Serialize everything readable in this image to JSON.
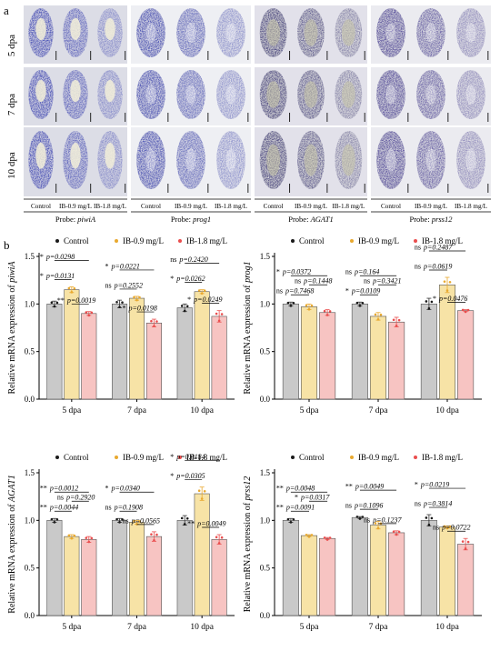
{
  "panel_a": {
    "label": "a",
    "row_labels": [
      "5 dpa",
      "7 dpa",
      "10 dpa"
    ],
    "groups": [
      {
        "probe_prefix": "Probe: ",
        "probe_name": "piwiA",
        "conditions": [
          "Control",
          "IB-0.9 mg/L",
          "IB-1.8 mg/L"
        ],
        "stain": "#3c47b4",
        "bg": "#dcdde6",
        "style": "piwi"
      },
      {
        "probe_prefix": "Probe: ",
        "probe_name": "prog1",
        "conditions": [
          "Control",
          "IB-0.9 mg/L",
          "IB-1.8 mg/L"
        ],
        "stain": "#3f49b0",
        "bg": "#eeeff3",
        "style": "prog"
      },
      {
        "probe_prefix": "Probe: ",
        "probe_name": "AGAT1",
        "conditions": [
          "Control",
          "IB-0.9 mg/L",
          "IB-1.8 mg/L"
        ],
        "stain": "#3c3778",
        "bg": "#e2e1ea",
        "style": "agat"
      },
      {
        "probe_prefix": "Probe: ",
        "probe_name": "prss12",
        "conditions": [
          "Control",
          "IB-0.9 mg/L",
          "IB-1.8 mg/L"
        ],
        "stain": "#4b3f96",
        "bg": "#ebebf0",
        "style": "prss"
      }
    ]
  },
  "panel_b_label": "b",
  "legend_labels": [
    "Control",
    "IB-0.9 mg/L",
    "IB-1.8 mg/L"
  ],
  "colors": {
    "control": "#c9c9c9",
    "ib09": "#f7e3a6",
    "ib18": "#f7c4c2",
    "dot_control": "#1a1a1a",
    "dot_ib09": "#e9a92f",
    "dot_ib18": "#ea4e4e"
  },
  "chart_data": [
    {
      "type": "bar",
      "gene": "piwiA",
      "ylabel_prefix": "Relative mRNA expression of ",
      "categories": [
        "5 dpa",
        "7 dpa",
        "10 dpa"
      ],
      "ylim": [
        0,
        1.5
      ],
      "yticks": [
        "0.0",
        "0.5",
        "1.0",
        "1.5"
      ],
      "series": [
        {
          "name": "Control",
          "values": [
            1.0,
            1.0,
            0.96
          ],
          "errors": [
            0.03,
            0.04,
            0.04
          ]
        },
        {
          "name": "IB-0.9 mg/L",
          "values": [
            1.15,
            1.06,
            1.13
          ],
          "errors": [
            0.03,
            0.02,
            0.02
          ]
        },
        {
          "name": "IB-1.8 mg/L",
          "values": [
            0.9,
            0.8,
            0.87
          ],
          "errors": [
            0.02,
            0.04,
            0.06
          ]
        }
      ],
      "annotations": [
        {
          "cat": 0,
          "from": 0,
          "to": 2,
          "stars": "*",
          "p": "p=0.0298"
        },
        {
          "cat": 0,
          "from": 1,
          "to": 2,
          "stars": "**",
          "p": "p=0.0019"
        },
        {
          "cat": 0,
          "from": 0,
          "to": 1,
          "stars": "*",
          "p": "p=0.0131"
        },
        {
          "cat": 1,
          "from": 0,
          "to": 2,
          "stars": "*",
          "p": "p=0.0221"
        },
        {
          "cat": 1,
          "from": 1,
          "to": 2,
          "stars": "*",
          "p": "p=0.0198"
        },
        {
          "cat": 1,
          "from": 0,
          "to": 1,
          "stars": "ns",
          "p": "p=0.2552"
        },
        {
          "cat": 2,
          "from": 0,
          "to": 2,
          "stars": "ns",
          "p": "p=0.2420"
        },
        {
          "cat": 2,
          "from": 1,
          "to": 2,
          "stars": "*",
          "p": "p=0.0249"
        },
        {
          "cat": 2,
          "from": 0,
          "to": 1,
          "stars": "*",
          "p": "p=0.0262"
        }
      ]
    },
    {
      "type": "bar",
      "gene": "prog1",
      "ylabel_prefix": "Relative mRNA expression of ",
      "categories": [
        "5 dpa",
        "7 dpa",
        "10 dpa"
      ],
      "ylim": [
        0,
        1.5
      ],
      "yticks": [
        "0.0",
        "0.5",
        "1.0",
        "1.5"
      ],
      "series": [
        {
          "name": "Control",
          "values": [
            1.0,
            1.0,
            1.0
          ],
          "errors": [
            0.02,
            0.02,
            0.06
          ]
        },
        {
          "name": "IB-0.9 mg/L",
          "values": [
            0.97,
            0.87,
            1.2
          ],
          "errors": [
            0.03,
            0.04,
            0.08
          ]
        },
        {
          "name": "IB-1.8 mg/L",
          "values": [
            0.91,
            0.81,
            0.93
          ],
          "errors": [
            0.03,
            0.05,
            0.01
          ]
        }
      ],
      "annotations": [
        {
          "cat": 0,
          "from": 0,
          "to": 2,
          "stars": "*",
          "p": "p=0.0372"
        },
        {
          "cat": 0,
          "from": 1,
          "to": 2,
          "stars": "ns",
          "p": "p=0.1448"
        },
        {
          "cat": 0,
          "from": 0,
          "to": 1,
          "stars": "ns",
          "p": "p=0.7468"
        },
        {
          "cat": 1,
          "from": 0,
          "to": 2,
          "stars": "ns",
          "p": "p=0.164"
        },
        {
          "cat": 1,
          "from": 0,
          "to": 1,
          "stars": "*",
          "p": "p=0.0109"
        },
        {
          "cat": 1,
          "from": 1,
          "to": 2,
          "stars": "ns",
          "p": "p=0.3421"
        },
        {
          "cat": 2,
          "from": 0,
          "to": 2,
          "stars": "ns",
          "p": "p=0.2487"
        },
        {
          "cat": 2,
          "from": 1,
          "to": 2,
          "stars": "*",
          "p": "p=0.0476"
        },
        {
          "cat": 2,
          "from": 0,
          "to": 1,
          "stars": "ns",
          "p": "p=0.0619"
        }
      ]
    },
    {
      "type": "bar",
      "gene": "AGAT1",
      "ylabel_prefix": "Relative mRNA expression of ",
      "categories": [
        "5 dpa",
        "7 dpa",
        "10 dpa"
      ],
      "ylim": [
        0,
        1.5
      ],
      "yticks": [
        "0.0",
        "0.5",
        "1.0",
        "1.5"
      ],
      "series": [
        {
          "name": "Control",
          "values": [
            1.0,
            1.0,
            1.0
          ],
          "errors": [
            0.02,
            0.02,
            0.05
          ]
        },
        {
          "name": "IB-0.9 mg/L",
          "values": [
            0.83,
            0.98,
            1.28
          ],
          "errors": [
            0.02,
            0.02,
            0.07
          ]
        },
        {
          "name": "IB-1.8 mg/L",
          "values": [
            0.8,
            0.83,
            0.8
          ],
          "errors": [
            0.03,
            0.05,
            0.05
          ]
        }
      ],
      "annotations": [
        {
          "cat": 0,
          "from": 0,
          "to": 2,
          "stars": "**",
          "p": "p=0.0012"
        },
        {
          "cat": 0,
          "from": 0,
          "to": 1,
          "stars": "**",
          "p": "p=0.0044"
        },
        {
          "cat": 0,
          "from": 1,
          "to": 2,
          "stars": "ns",
          "p": "p=0.2920"
        },
        {
          "cat": 1,
          "from": 0,
          "to": 2,
          "stars": "*",
          "p": "p=0.0340"
        },
        {
          "cat": 1,
          "from": 0,
          "to": 1,
          "stars": "ns",
          "p": "p=0.1908"
        },
        {
          "cat": 1,
          "from": 1,
          "to": 2,
          "stars": "ns",
          "p": "p=0.0565"
        },
        {
          "cat": 2,
          "from": 0,
          "to": 2,
          "stars": "*",
          "p": "p=0.0184"
        },
        {
          "cat": 2,
          "from": 1,
          "to": 2,
          "stars": "**",
          "p": "p=0.0049"
        },
        {
          "cat": 2,
          "from": 0,
          "to": 1,
          "stars": "*",
          "p": "p=0.0305"
        }
      ]
    },
    {
      "type": "bar",
      "gene": "prss12",
      "ylabel_prefix": "Relative mRNA expression of ",
      "categories": [
        "5 dpa",
        "7 dpa",
        "10 dpa"
      ],
      "ylim": [
        0,
        1.5
      ],
      "yticks": [
        "0.0",
        "0.5",
        "1.0",
        "1.5"
      ],
      "series": [
        {
          "name": "Control",
          "values": [
            1.0,
            1.03,
            1.0
          ],
          "errors": [
            0.02,
            0.01,
            0.06
          ]
        },
        {
          "name": "IB-0.9 mg/L",
          "values": [
            0.84,
            0.95,
            0.93
          ],
          "errors": [
            0.01,
            0.04,
            0.01
          ]
        },
        {
          "name": "IB-1.8 mg/L",
          "values": [
            0.81,
            0.87,
            0.75
          ],
          "errors": [
            0.01,
            0.02,
            0.06
          ]
        }
      ],
      "annotations": [
        {
          "cat": 0,
          "from": 0,
          "to": 2,
          "stars": "**",
          "p": "p=0.0048"
        },
        {
          "cat": 0,
          "from": 0,
          "to": 1,
          "stars": "**",
          "p": "p=0.0091"
        },
        {
          "cat": 0,
          "from": 1,
          "to": 2,
          "stars": "*",
          "p": "p=0.0317"
        },
        {
          "cat": 1,
          "from": 0,
          "to": 2,
          "stars": "**",
          "p": "p=0.0049"
        },
        {
          "cat": 1,
          "from": 0,
          "to": 1,
          "stars": "ns",
          "p": "p=0.1096"
        },
        {
          "cat": 1,
          "from": 1,
          "to": 2,
          "stars": "ns",
          "p": "p=0.1237"
        },
        {
          "cat": 2,
          "from": 0,
          "to": 2,
          "stars": "*",
          "p": "p=0.0219"
        },
        {
          "cat": 2,
          "from": 0,
          "to": 1,
          "stars": "ns",
          "p": "p=0.3814"
        },
        {
          "cat": 2,
          "from": 1,
          "to": 2,
          "stars": "ns",
          "p": "p=0.0722"
        }
      ]
    }
  ]
}
